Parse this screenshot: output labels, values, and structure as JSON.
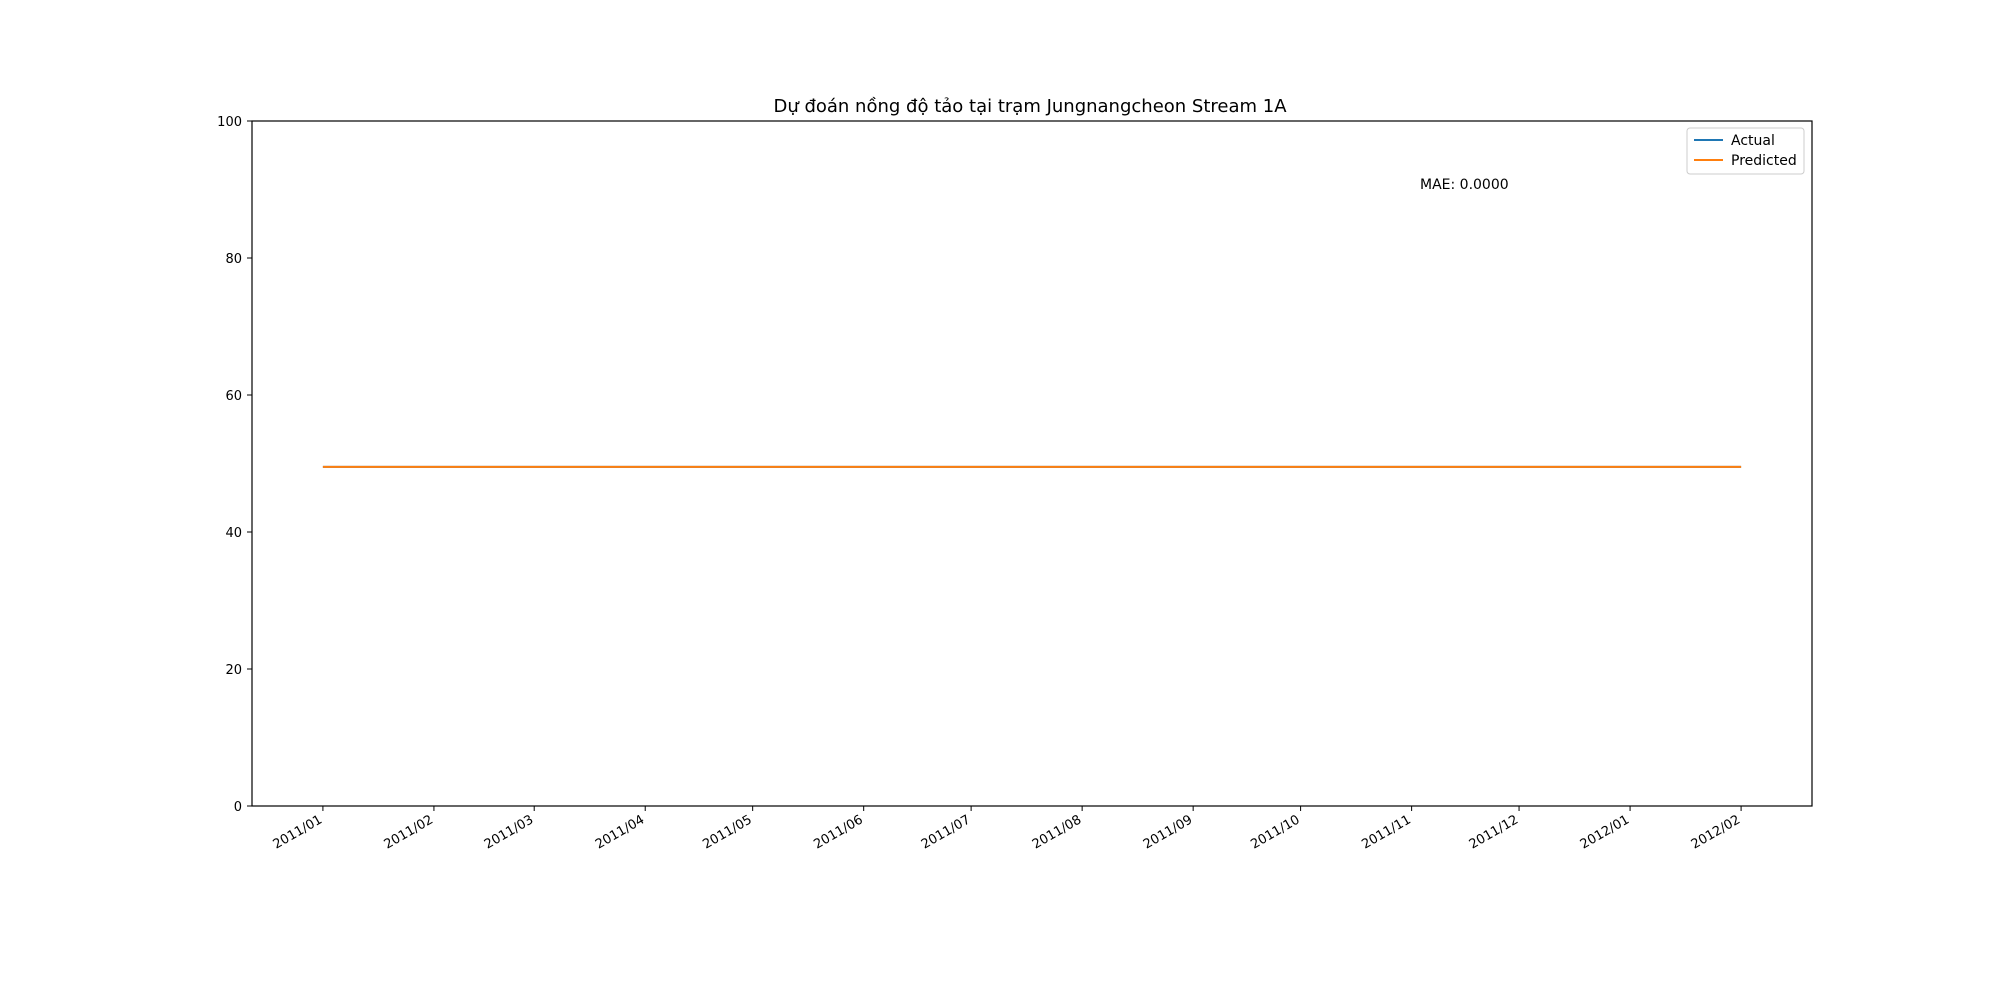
{
  "chart_data": {
    "type": "line",
    "title": "Dự đoán nồng độ tảo tại trạm Jungnangcheon Stream 1A",
    "xlabel": "",
    "ylabel": "",
    "x": [
      "2011/01/01",
      "2011/02/01",
      "2011/03/01",
      "2011/04/01",
      "2011/05/01",
      "2011/06/01",
      "2011/07/01",
      "2011/08/01",
      "2011/09/01",
      "2011/10/01",
      "2011/11/01",
      "2011/12/01",
      "2012/01/01",
      "2012/02/01"
    ],
    "x_ticks": [
      "2011/01",
      "2011/02",
      "2011/03",
      "2011/04",
      "2011/05",
      "2011/06",
      "2011/07",
      "2011/08",
      "2011/09",
      "2011/10",
      "2011/11",
      "2011/12",
      "2012/01",
      "2012/02"
    ],
    "y_ticks": [
      "0",
      "20",
      "40",
      "60",
      "80",
      "100"
    ],
    "ylim": [
      0,
      100
    ],
    "series": [
      {
        "name": "Actual",
        "color": "#1f77b4",
        "values": [
          49.5,
          49.5,
          49.5,
          49.5,
          49.5,
          49.5,
          49.5,
          49.5,
          49.5,
          49.5,
          49.5,
          49.5,
          49.5,
          49.5
        ]
      },
      {
        "name": "Predicted",
        "color": "#ff7f0e",
        "values": [
          49.5,
          49.5,
          49.5,
          49.5,
          49.5,
          49.5,
          49.5,
          49.5,
          49.5,
          49.5,
          49.5,
          49.5,
          49.5,
          49.5
        ]
      }
    ],
    "annotation": "MAE: 0.0000",
    "legend_position": "top-right",
    "grid": false
  }
}
